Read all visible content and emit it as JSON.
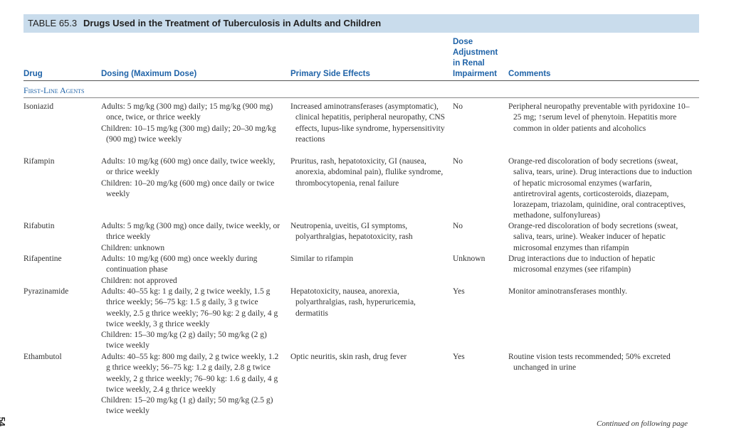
{
  "header": {
    "label": "TABLE 65.3",
    "title": "Drugs Used in the Treatment of Tuberculosis in Adults and Children"
  },
  "columns": [
    "Drug",
    "Dosing (Maximum Dose)",
    "Primary Side Effects",
    "Dose Adjustment in Renal Impairment",
    "Comments"
  ],
  "section": "First-Line Agents",
  "rows": [
    {
      "drug": "Isoniazid",
      "dosing": [
        "Adults: 5 mg/kg (300 mg) daily; 15 mg/kg (900 mg) once, twice, or thrice weekly",
        "Children: 10–15 mg/kg (300 mg) daily; 20–30 mg/kg (900 mg) twice weekly"
      ],
      "side_effects": [
        "Increased aminotransferases (asymptomatic), clinical hepatitis, peripheral neuropathy, CNS effects, lupus-like syndrome, hypersensitivity reactions"
      ],
      "renal": "No",
      "comments": [
        "Peripheral neuropathy preventable with pyridoxine 10–25 mg; ↑serum level of phenytoin. Hepatitis more common in older patients and alcoholics"
      ]
    },
    {
      "drug": "Rifampin",
      "dosing": [
        "Adults: 10 mg/kg (600 mg) once daily, twice weekly, or thrice weekly",
        "Children: 10–20 mg/kg (600 mg) once daily or twice weekly"
      ],
      "side_effects": [
        "Pruritus, rash, hepatotoxicity, GI (nausea, anorexia, abdominal pain), flulike syndrome, thrombocytopenia, renal failure"
      ],
      "renal": "No",
      "comments": [
        "Orange-red discoloration of body secretions (sweat, saliva, tears, urine). Drug interactions due to induction of hepatic microsomal enzymes (warfarin, antiretroviral agents, corticosteroids, diazepam, lorazepam, triazolam, quinidine, oral contraceptives, methadone, sulfonylureas)"
      ]
    },
    {
      "drug": "Rifabutin",
      "dosing": [
        "Adults: 5 mg/kg (300 mg) once daily, twice weekly, or thrice weekly",
        "Children: unknown"
      ],
      "side_effects": [
        "Neutropenia, uveitis, GI symptoms, polyarthralgias, hepatotoxicity, rash"
      ],
      "renal": "No",
      "comments": [
        "Orange-red discoloration of body secretions (sweat, saliva, tears, urine). Weaker inducer of hepatic microsomal enzymes than rifampin"
      ]
    },
    {
      "drug": "Rifapentine",
      "dosing": [
        "Adults: 10 mg/kg (600 mg) once weekly during continuation phase",
        "Children: not approved"
      ],
      "side_effects": [
        "Similar to rifampin"
      ],
      "renal": "Unknown",
      "comments": [
        "Drug interactions due to induction of hepatic microsomal enzymes (see rifampin)"
      ]
    },
    {
      "drug": "Pyrazinamide",
      "dosing": [
        "Adults: 40–55 kg: 1 g daily, 2 g twice weekly, 1.5 g thrice weekly; 56–75 kg: 1.5 g daily, 3 g twice weekly, 2.5 g thrice weekly; 76–90 kg: 2 g daily, 4 g twice weekly, 3 g thrice weekly",
        "Children: 15–30 mg/kg (2 g) daily; 50 mg/kg (2 g) twice weekly"
      ],
      "side_effects": [
        "Hepatotoxicity, nausea, anorexia, polyarthralgias, rash, hyperuricemia, dermatitis"
      ],
      "renal": "Yes",
      "comments": [
        "Monitor aminotransferases monthly."
      ]
    },
    {
      "drug": "Ethambutol",
      "dosing": [
        "Adults: 40–55 kg: 800 mg daily, 2 g twice weekly, 1.2 g thrice weekly; 56–75 kg: 1.2 g daily, 2.8 g twice weekly, 2 g thrice weekly; 76–90 kg: 1.6 g daily, 4 g twice weekly, 2.4 g thrice weekly",
        "Children: 15–20 mg/kg (1 g) daily; 50 mg/kg (2.5 g) twice weekly"
      ],
      "side_effects": [
        "Optic neuritis, skin rash, drug fever"
      ],
      "renal": "Yes",
      "comments": [
        "Routine vision tests recommended; 50% excreted unchanged in urine"
      ]
    }
  ],
  "footer": "Continued on following page",
  "page_number": "54"
}
